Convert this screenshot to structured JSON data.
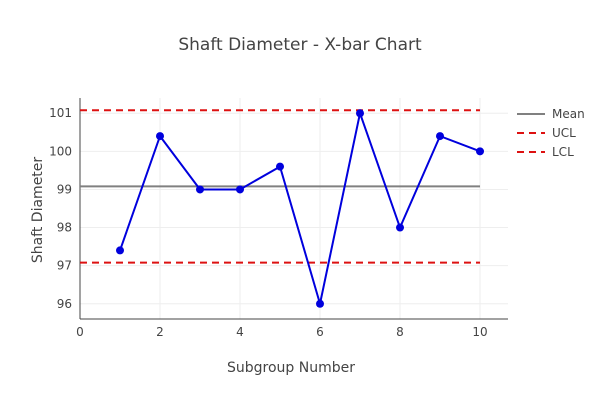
{
  "chart_data": {
    "type": "line",
    "title": "Shaft Diameter - X-bar Chart",
    "xlabel": "Subgroup Number",
    "ylabel": "Shaft Diameter",
    "xlim": [
      0,
      10.7
    ],
    "ylim": [
      95.6,
      101.4
    ],
    "x_ticks": [
      "0",
      "2",
      "4",
      "6",
      "8",
      "10"
    ],
    "y_ticks": [
      "96",
      "97",
      "98",
      "99",
      "100",
      "101"
    ],
    "grid": true,
    "legend_position": "top-right",
    "series": [
      {
        "x": [
          1,
          2,
          3,
          4,
          5,
          6,
          7,
          8,
          9,
          10
        ],
        "values": [
          97.4,
          100.4,
          99.0,
          99.0,
          99.6,
          96.0,
          101.0,
          98.0,
          100.4,
          100.0
        ],
        "color": "#0000dd"
      }
    ],
    "reference_lines": [
      {
        "name": "Mean",
        "value": 99.08,
        "color": "#808080",
        "style": "solid"
      },
      {
        "name": "UCL",
        "value": 101.08,
        "color": "#dd1111",
        "style": "dashed"
      },
      {
        "name": "LCL",
        "value": 97.08,
        "color": "#dd1111",
        "style": "dashed"
      }
    ]
  }
}
